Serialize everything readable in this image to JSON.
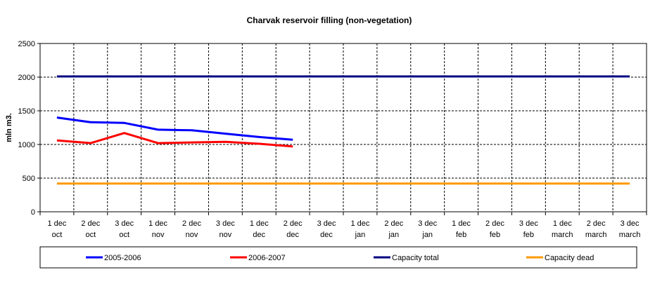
{
  "chart_data": {
    "type": "line",
    "title": "Charvak reservoir filling  (non-vegetation)",
    "xlabel": "",
    "ylabel": "mln m3.",
    "ylim": [
      0,
      2500
    ],
    "yticks": [
      0,
      500,
      1000,
      1500,
      2000,
      2500
    ],
    "categories": [
      [
        "1 dec",
        "oct"
      ],
      [
        "2 dec",
        "oct"
      ],
      [
        "3 dec",
        "oct"
      ],
      [
        "1 dec",
        "nov"
      ],
      [
        "2 dec",
        "nov"
      ],
      [
        "3 dec",
        "nov"
      ],
      [
        "1 dec",
        "dec"
      ],
      [
        "2 dec",
        "dec"
      ],
      [
        "3 dec",
        "dec"
      ],
      [
        "1 dec",
        "jan"
      ],
      [
        "2 dec",
        "jan"
      ],
      [
        "3 dec",
        "jan"
      ],
      [
        "1 dec",
        "feb"
      ],
      [
        "2 dec",
        "feb"
      ],
      [
        "3 dec",
        "feb"
      ],
      [
        "1 dec",
        "march"
      ],
      [
        "2 dec",
        "march"
      ],
      [
        "3 dec",
        "march"
      ]
    ],
    "grid": true,
    "legend_position": "bottom",
    "series": [
      {
        "name": "2005-2006",
        "color": "#0000ff",
        "values": [
          1400,
          1330,
          1320,
          1220,
          1210,
          1160,
          1110,
          1070,
          null,
          null,
          null,
          null,
          null,
          null,
          null,
          null,
          null,
          null
        ]
      },
      {
        "name": "2006-2007",
        "color": "#ff0000",
        "values": [
          1060,
          1020,
          1170,
          1020,
          1030,
          1040,
          1010,
          970,
          null,
          null,
          null,
          null,
          null,
          null,
          null,
          null,
          null,
          null
        ]
      },
      {
        "name": "Capacity total",
        "color": "#000080",
        "values": [
          2010,
          2010,
          2010,
          2010,
          2010,
          2010,
          2010,
          2010,
          2010,
          2010,
          2010,
          2010,
          2010,
          2010,
          2010,
          2010,
          2010,
          2010
        ]
      },
      {
        "name": "Capacity dead",
        "color": "#ff9900",
        "values": [
          420,
          420,
          420,
          420,
          420,
          420,
          420,
          420,
          420,
          420,
          420,
          420,
          420,
          420,
          420,
          420,
          420,
          420
        ]
      }
    ]
  }
}
